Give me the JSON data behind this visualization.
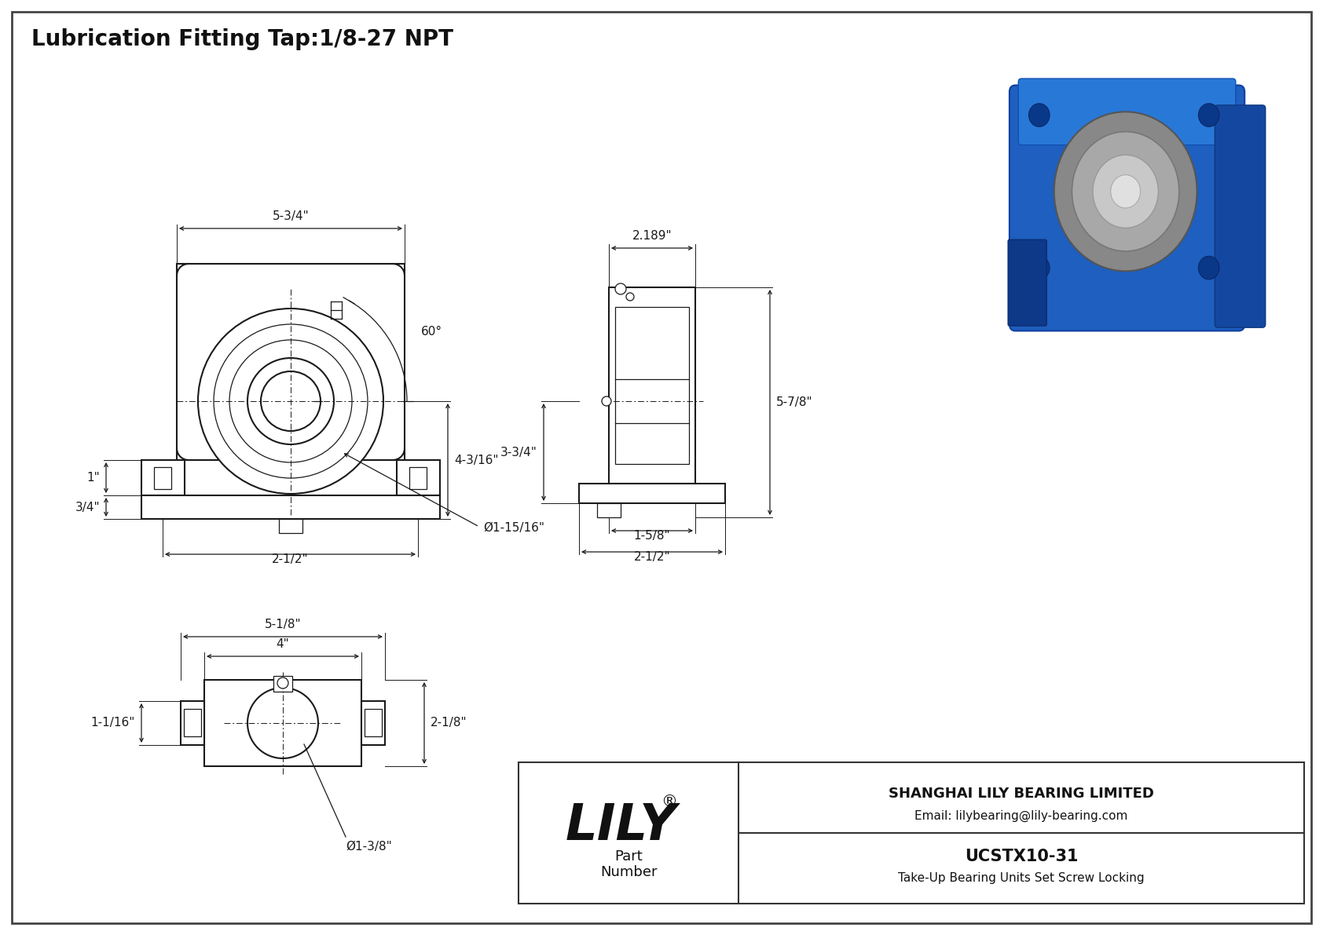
{
  "bg_color": "#ffffff",
  "border_color": "#333333",
  "line_color": "#1a1a1a",
  "title_text": "Lubrication Fitting Tap:1/8-27 NPT",
  "title_fontsize": 20,
  "dim_fontsize": 11,
  "company": "LILY",
  "company_sup": "®",
  "company_full": "SHANGHAI LILY BEARING LIMITED",
  "email": "Email: lilybearing@lily-bearing.com",
  "part_label": "Part\nNumber",
  "part_number": "UCSTX10-31",
  "part_desc": "Take-Up Bearing Units Set Screw Locking",
  "dims_front": {
    "width_total": "5-3/4\"",
    "height_foot": "1\"",
    "height_slot": "3/4\"",
    "bore_dia": "Ø1-15/16\"",
    "center_height": "4-3/16\"",
    "bolt_span": "2-1/2\"",
    "angle": "60°"
  },
  "dims_side": {
    "depth": "2.189\"",
    "height_total": "5-7/8\"",
    "center_height": "3-3/4\"",
    "base_width": "2-1/2\"",
    "slot_width": "1-5/8\""
  },
  "dims_top": {
    "width_total": "5-1/8\"",
    "bolt_span": "4\"",
    "height": "2-1/8\"",
    "foot_height": "1-1/16\"",
    "bore_dia": "Ø1-3/8\""
  }
}
